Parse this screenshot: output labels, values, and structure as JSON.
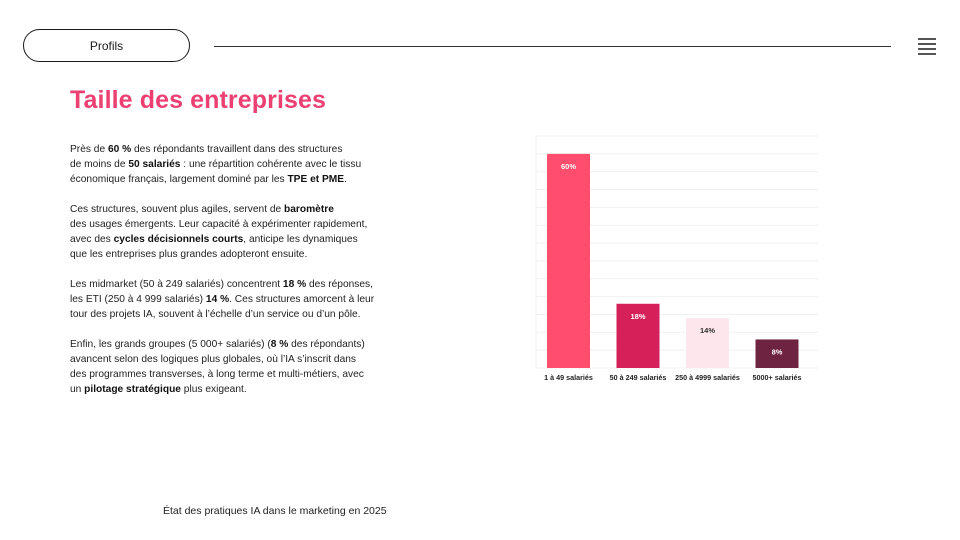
{
  "header": {
    "section_label": "Profils",
    "menu_icon": "hamburger-menu-icon"
  },
  "page": {
    "title": "Taille des entreprises"
  },
  "paragraphs": [
    [
      {
        "t": "Près de ",
        "b": false
      },
      {
        "t": "60 %",
        "b": true
      },
      {
        "t": " des répondants travaillent dans des structures",
        "b": false
      },
      {
        "br": true
      },
      {
        "t": "de moins de ",
        "b": false
      },
      {
        "t": "50 salariés",
        "b": true
      },
      {
        "t": " : une répartition cohérente avec le tissu",
        "b": false
      },
      {
        "br": true
      },
      {
        "t": "économique français, largement dominé par les ",
        "b": false
      },
      {
        "t": "TPE et PME",
        "b": true
      },
      {
        "t": ".",
        "b": false
      }
    ],
    [
      {
        "t": "Ces structures, souvent plus agiles, servent de ",
        "b": false
      },
      {
        "t": "baromètre",
        "b": true
      },
      {
        "br": true
      },
      {
        "t": "des usages émergents. Leur capacité à expérimenter rapidement,",
        "b": false
      },
      {
        "br": true
      },
      {
        "t": "avec des ",
        "b": false
      },
      {
        "t": "cycles décisionnels courts",
        "b": true
      },
      {
        "t": ", anticipe les dynamiques",
        "b": false
      },
      {
        "br": true
      },
      {
        "t": "que les entreprises plus grandes adopteront ensuite.",
        "b": false
      }
    ],
    [
      {
        "t": "Les midmarket (50 à 249 salariés) concentrent ",
        "b": false
      },
      {
        "t": "18 %",
        "b": true
      },
      {
        "t": " des réponses,",
        "b": false
      },
      {
        "br": true
      },
      {
        "t": "les ETI (250 à 4 999 salariés) ",
        "b": false
      },
      {
        "t": "14 %",
        "b": true
      },
      {
        "t": ". Ces structures amorcent à leur",
        "b": false
      },
      {
        "br": true
      },
      {
        "t": "tour des projets IA, souvent à l’échelle d’un service ou d’un pôle.",
        "b": false
      }
    ],
    [
      {
        "t": "Enfin, les grands groupes (5 000+ salariés) (",
        "b": false
      },
      {
        "t": "8 %",
        "b": true
      },
      {
        "t": " des répondants)",
        "b": false
      },
      {
        "br": true
      },
      {
        "t": "avancent selon des logiques plus globales, où l’IA s’inscrit dans",
        "b": false
      },
      {
        "br": true
      },
      {
        "t": "des programmes transverses, à long terme et multi-métiers, avec",
        "b": false
      },
      {
        "br": true
      },
      {
        "t": "un ",
        "b": false
      },
      {
        "t": "pilotage stratégique",
        "b": true
      },
      {
        "t": " plus exigeant.",
        "b": false
      }
    ]
  ],
  "footer": {
    "text": "État des pratiques IA dans le marketing en 2025"
  },
  "chart_data": {
    "type": "bar",
    "categories": [
      "1 à 49 salariés",
      "50 à 249 salariés",
      "250 à 4999 salariés",
      "5000+ salariés"
    ],
    "values": [
      60,
      18,
      14,
      8
    ],
    "data_labels": [
      "60%",
      "18%",
      "14%",
      "8%"
    ],
    "colors": [
      "#ff4d6d",
      "#d4215a",
      "#fde7ec",
      "#6e2340"
    ],
    "label_colors": [
      "#ffffff",
      "#ffffff",
      "#333333",
      "#ffffff"
    ],
    "ylim": [
      0,
      65
    ],
    "grid": true,
    "legend": "none"
  },
  "colors": {
    "accent": "#ec3f72"
  }
}
